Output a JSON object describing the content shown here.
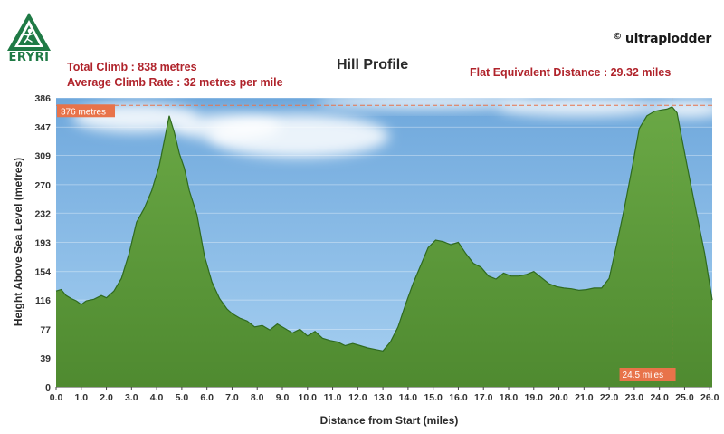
{
  "branding": {
    "logo_text": "ERYRI",
    "logo_icon": "mountain-runner-logo",
    "brand_name": "ultraplodder",
    "brand_symbol": "©"
  },
  "stats": {
    "total_climb": "Total Climb : 838 metres",
    "avg_climb_rate": "Average Climb Rate : 32 metres per mile",
    "flat_equivalent": "Flat Equivalent Distance : 29.32 miles"
  },
  "colors": {
    "profile_fill": "#5f9e3c",
    "profile_stroke": "#2f6a1f",
    "sky": "#8ec0ea",
    "accent": "#e8734a",
    "stat_text": "#b0232b"
  },
  "chart_data": {
    "type": "area",
    "title": "Hill Profile",
    "xlabel": "Distance from Start (miles)",
    "ylabel": "Height Above Sea Level (metres)",
    "xlim": [
      0,
      26.1
    ],
    "ylim": [
      0,
      386
    ],
    "x_ticks": [
      "0.0",
      "1.0",
      "2.0",
      "3.0",
      "4.0",
      "5.0",
      "6.0",
      "7.0",
      "8.0",
      "9.0",
      "10.0",
      "11.0",
      "12.0",
      "13.0",
      "14.0",
      "15.0",
      "16.0",
      "17.0",
      "18.0",
      "19.0",
      "20.0",
      "21.0",
      "22.0",
      "23.0",
      "24.0",
      "25.0",
      "26.0"
    ],
    "y_ticks": [
      "0",
      "39",
      "77",
      "116",
      "154",
      "193",
      "232",
      "270",
      "309",
      "347",
      "386"
    ],
    "grid": true,
    "annotations": [
      {
        "text": "376 metres",
        "type": "max-height-line",
        "y": 376
      },
      {
        "text": "24.5 miles",
        "type": "max-distance-line",
        "x": 24.5
      }
    ],
    "series": [
      {
        "x": [
          0,
          0.2,
          0.4,
          0.6,
          0.8,
          1.0,
          1.2,
          1.5,
          1.8,
          2.0,
          2.3,
          2.6,
          2.9,
          3.2,
          3.5,
          3.8,
          4.1,
          4.3,
          4.5,
          4.7,
          4.9,
          5.1,
          5.3,
          5.6,
          5.9,
          6.2,
          6.5,
          6.8,
          7.0,
          7.3,
          7.6,
          7.9,
          8.2,
          8.5,
          8.8,
          9.1,
          9.4,
          9.7,
          10.0,
          10.3,
          10.6,
          10.9,
          11.2,
          11.5,
          11.8,
          12.1,
          12.4,
          12.7,
          13.0,
          13.3,
          13.6,
          13.9,
          14.2,
          14.5,
          14.8,
          15.1,
          15.4,
          15.7,
          16.0,
          16.3,
          16.6,
          16.9,
          17.2,
          17.5,
          17.8,
          18.1,
          18.4,
          18.7,
          19.0,
          19.3,
          19.6,
          19.9,
          20.2,
          20.5,
          20.8,
          21.1,
          21.4,
          21.7,
          22.0,
          22.3,
          22.6,
          22.9,
          23.2,
          23.5,
          23.8,
          24.1,
          24.3,
          24.5,
          24.7,
          24.9,
          25.2,
          25.5,
          25.8,
          26.1
        ],
        "y": [
          128,
          130,
          122,
          118,
          115,
          110,
          115,
          117,
          122,
          119,
          128,
          145,
          178,
          220,
          238,
          262,
          295,
          328,
          362,
          340,
          312,
          292,
          262,
          230,
          175,
          140,
          118,
          104,
          98,
          92,
          88,
          80,
          82,
          76,
          84,
          78,
          72,
          77,
          68,
          74,
          65,
          62,
          60,
          55,
          58,
          55,
          52,
          50,
          48,
          60,
          80,
          110,
          138,
          162,
          186,
          196,
          194,
          190,
          193,
          178,
          165,
          160,
          148,
          144,
          152,
          148,
          148,
          150,
          154,
          146,
          138,
          134,
          132,
          131,
          129,
          130,
          132,
          132,
          145,
          190,
          238,
          290,
          345,
          362,
          368,
          370,
          371,
          374,
          366,
          330,
          278,
          228,
          178,
          116
        ]
      }
    ]
  }
}
